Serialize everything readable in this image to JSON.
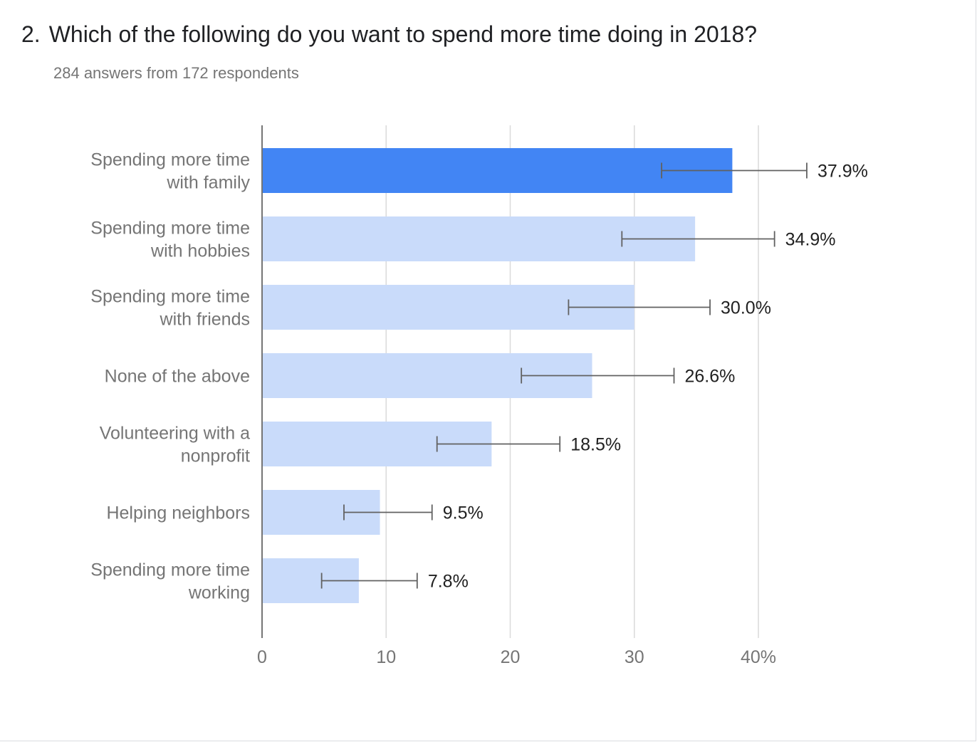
{
  "question": {
    "number": "2.",
    "text": "Which of the following do you want to spend more time doing in 2018?",
    "summary": "284 answers from 172 respondents"
  },
  "colors": {
    "highlight_bar": "#4285f4",
    "bar": "#c9dbfa",
    "gridline": "#dadada",
    "axis": "#757575",
    "category_text": "#757575",
    "value_text": "#212121",
    "error_bar": "#616161"
  },
  "chart_data": {
    "type": "bar",
    "orientation": "horizontal",
    "categories": [
      [
        "Spending more time",
        "with family"
      ],
      [
        "Spending more time",
        "with hobbies"
      ],
      [
        "Spending more time",
        "with friends"
      ],
      [
        "None of the above"
      ],
      [
        "Volunteering with a",
        "nonprofit"
      ],
      [
        "Helping neighbors"
      ],
      [
        "Spending more time",
        "working"
      ]
    ],
    "values": [
      37.9,
      34.9,
      30.0,
      26.6,
      18.5,
      9.5,
      7.8
    ],
    "value_labels": [
      "37.9%",
      "34.9%",
      "30.0%",
      "26.6%",
      "18.5%",
      "9.5%",
      "7.8%"
    ],
    "error_bars": [
      [
        32.2,
        43.9
      ],
      [
        29.0,
        41.3
      ],
      [
        24.7,
        36.1
      ],
      [
        20.9,
        33.2
      ],
      [
        14.1,
        24.0
      ],
      [
        6.6,
        13.7
      ],
      [
        4.8,
        12.5
      ]
    ],
    "highlight_index": 0,
    "xlim": [
      0,
      40
    ],
    "xticks": [
      0,
      10,
      20,
      30,
      40
    ],
    "xtick_labels": [
      "0",
      "10",
      "20",
      "30",
      "40%"
    ],
    "grid": true
  }
}
